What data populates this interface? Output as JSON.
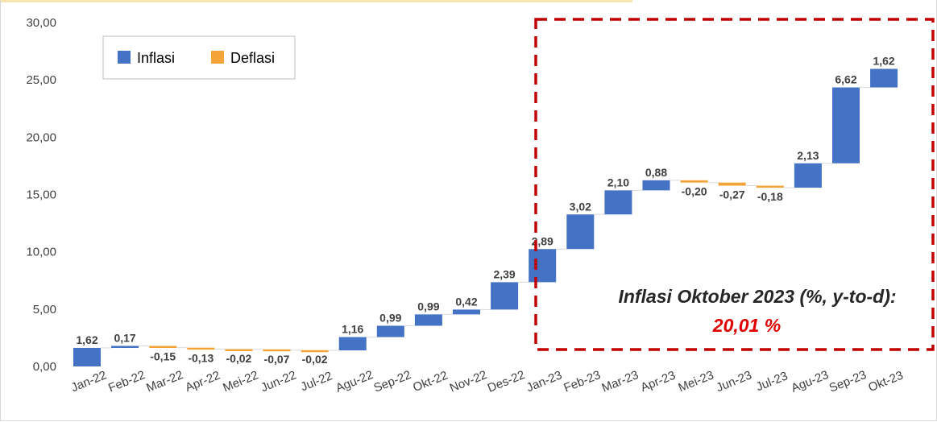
{
  "chart_data": {
    "type": "bar",
    "subtype": "waterfall",
    "categories": [
      "Jan-22",
      "Feb-22",
      "Mar-22",
      "Apr-22",
      "Mei-22",
      "Jun-22",
      "Jul-22",
      "Agu-22",
      "Sep-22",
      "Okt-22",
      "Nov-22",
      "Des-22",
      "Jan-23",
      "Feb-23",
      "Mar-23",
      "Apr-23",
      "Mei-23",
      "Jun-23",
      "Jul-23",
      "Agu-23",
      "Sep-23",
      "Okt-23"
    ],
    "values": [
      1.62,
      0.17,
      -0.15,
      -0.13,
      -0.02,
      -0.07,
      -0.02,
      1.16,
      0.99,
      0.99,
      0.42,
      2.39,
      2.89,
      3.02,
      2.1,
      0.88,
      -0.2,
      -0.27,
      -0.18,
      2.13,
      6.62,
      1.62
    ],
    "value_labels": [
      "1,62",
      "0,17",
      "-0,15",
      "-0,13",
      "-0,02",
      "-0,07",
      "-0,02",
      "1,16",
      "0,99",
      "0,99",
      "0,42",
      "2,39",
      "2,89",
      "3,02",
      "2,10",
      "0,88",
      "-0,20",
      "-0,27",
      "-0,18",
      "2,13",
      "6,62",
      "1,62"
    ],
    "y_ticks": [
      "0,00",
      "5,00",
      "10,00",
      "15,00",
      "20,00",
      "25,00",
      "30,00"
    ],
    "ylim": [
      0,
      30
    ],
    "grid": false,
    "legend": {
      "position": "top-left",
      "entries": [
        {
          "label": "Inflasi",
          "color": "#4472c4"
        },
        {
          "label": "Deflasi",
          "color": "#f4a338"
        }
      ]
    },
    "annotation": {
      "line1": "Inflasi Oktober 2023 (%, y-to-d):",
      "line2": "20,01 %",
      "box_color": "#c00000"
    },
    "colors": {
      "inflasi": "#4472c4",
      "deflasi": "#f4a338",
      "connector": "#d9d9d9"
    }
  }
}
